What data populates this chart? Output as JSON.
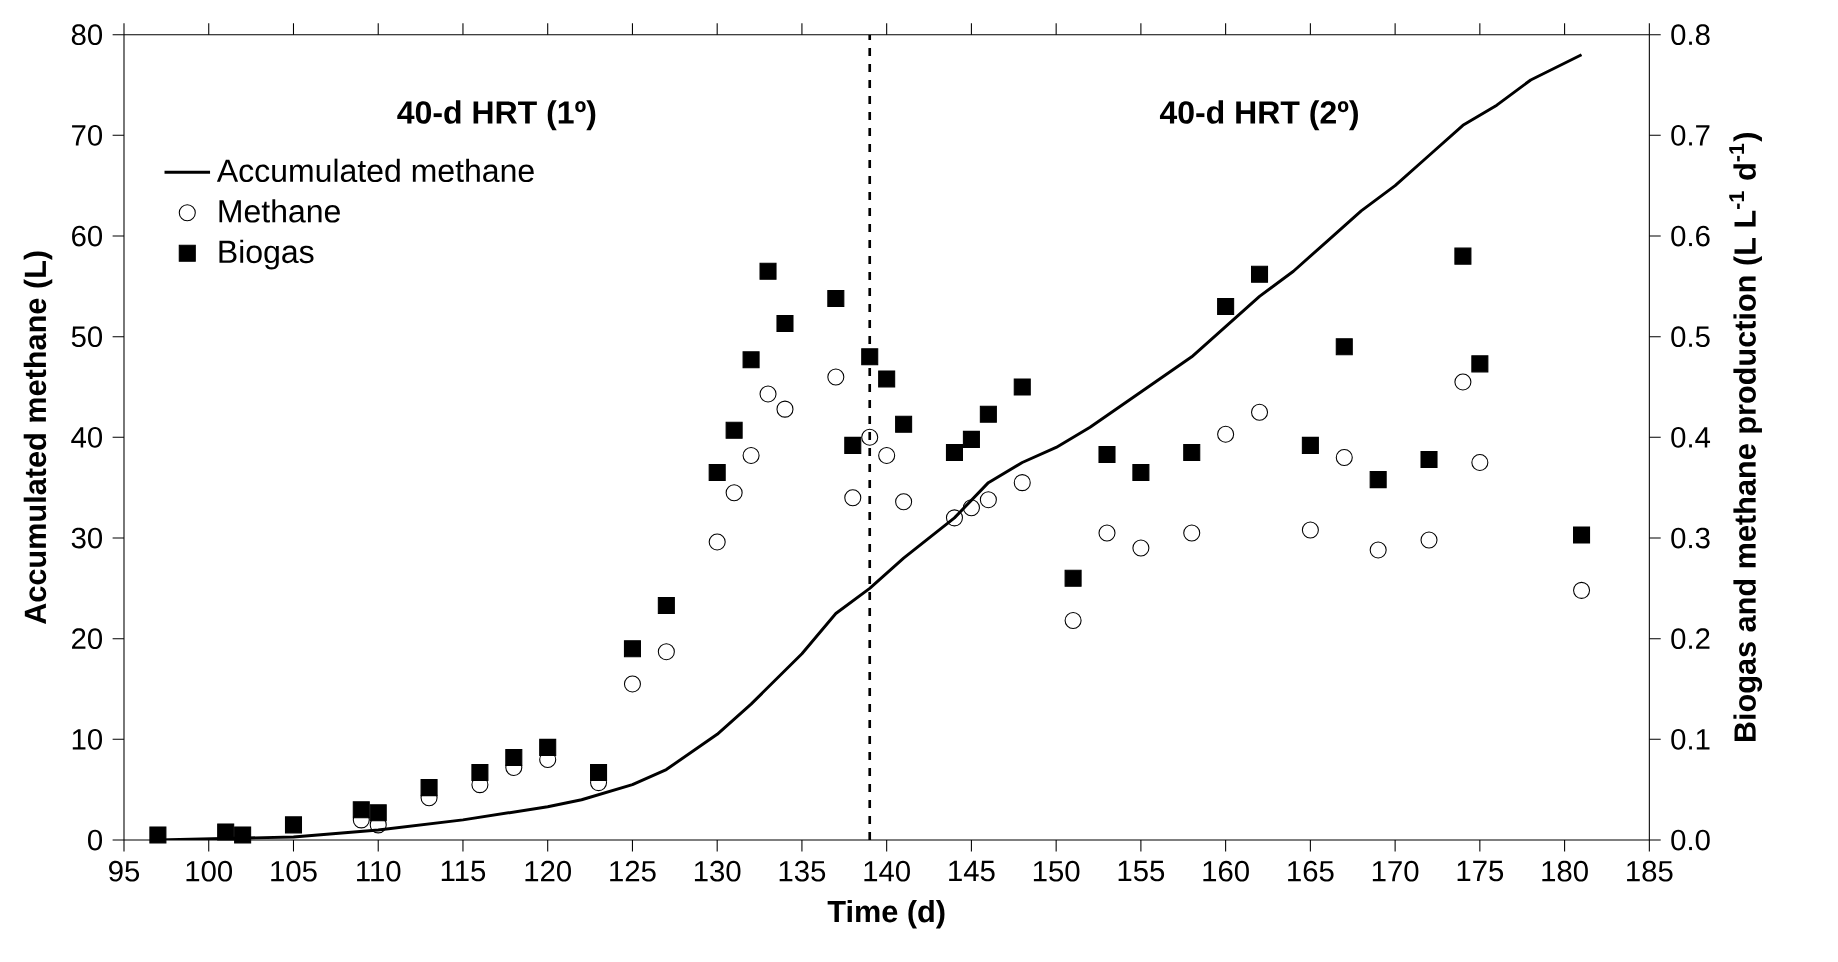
{
  "chart_data": {
    "type": "scatter",
    "xlabel": "Time (d)",
    "ylabel": "Accumulated methane (L)",
    "y2label": "Biogas and methane production (L L$^{-1}$ d$^{-1}$)",
    "xlim": [
      95,
      185
    ],
    "xticks": [
      95,
      100,
      105,
      110,
      115,
      120,
      125,
      130,
      135,
      140,
      145,
      150,
      155,
      160,
      165,
      170,
      175,
      180,
      185
    ],
    "ylim": [
      0,
      80
    ],
    "yticks": [
      0,
      10,
      20,
      30,
      40,
      50,
      60,
      70,
      80
    ],
    "y2lim": [
      0,
      0.8
    ],
    "y2ticks": [
      {
        "value": 0,
        "label": "0.0"
      },
      {
        "value": 0.1,
        "label": "0.1"
      },
      {
        "value": 0.2,
        "label": "0.2"
      },
      {
        "value": 0.3,
        "label": "0.3"
      },
      {
        "value": 0.4,
        "label": "0.4"
      },
      {
        "value": 0.5,
        "label": "0.5"
      },
      {
        "value": 0.6,
        "label": "0.6"
      },
      {
        "value": 0.7,
        "label": "0.7"
      },
      {
        "value": 0.8,
        "label": "0.8"
      }
    ],
    "legend": "top left",
    "grid": false,
    "ref_lines": [
      {
        "axis": "x",
        "value": 139,
        "line_style": "dashed",
        "color": "#000000"
      }
    ],
    "annotations": [
      "40-d HRT (1º)",
      "40-d HRT (2º)"
    ],
    "series": [
      {
        "name": "Accumulated methane",
        "type": "line",
        "color": "#000000",
        "line_style": "solid",
        "marker": "none",
        "x": [
          97,
          105,
          110,
          115,
          120,
          122,
          125,
          127,
          130,
          132,
          135,
          137,
          139,
          141,
          144,
          146,
          148,
          150,
          152,
          155,
          158,
          160,
          162,
          164,
          166,
          168,
          170,
          172,
          174,
          176,
          178,
          181
        ],
        "values": [
          0,
          0.3,
          1,
          2,
          3.3,
          4,
          5.5,
          7,
          10.5,
          13.5,
          18.5,
          22.5,
          25,
          28,
          32,
          35.5,
          37.5,
          39,
          41,
          44.5,
          48,
          51,
          54,
          56.5,
          59.5,
          62.5,
          65,
          68,
          71,
          73,
          75.5,
          78
        ]
      },
      {
        "name": "Methane",
        "axis": "y2",
        "color": "#000000",
        "marker": "circle",
        "x": [
          109,
          110,
          113,
          116,
          118,
          120,
          123,
          125,
          127,
          130,
          131,
          132,
          133,
          134,
          137,
          138,
          139,
          140,
          141,
          144,
          145,
          146,
          148,
          151,
          153,
          155,
          158,
          160,
          162,
          165,
          167,
          169,
          172,
          174,
          175,
          181
        ],
        "values": [
          0.02,
          0.015,
          0.042,
          0.055,
          0.072,
          0.08,
          0.057,
          0.155,
          0.187,
          0.296,
          0.345,
          0.382,
          0.443,
          0.428,
          0.46,
          0.34,
          0.4,
          0.382,
          0.336,
          0.32,
          0.33,
          0.338,
          0.355,
          0.218,
          0.305,
          0.29,
          0.305,
          0.403,
          0.425,
          0.308,
          0.38,
          0.288,
          0.298,
          0.455,
          0.375,
          0.248
        ]
      },
      {
        "name": "Biogas",
        "axis": "y2",
        "color": "#000000",
        "marker": "square",
        "x": [
          97,
          101,
          102,
          105,
          109,
          110,
          113,
          116,
          118,
          120,
          123,
          125,
          127,
          130,
          131,
          132,
          133,
          134,
          137,
          138,
          139,
          140,
          141,
          144,
          145,
          146,
          148,
          151,
          153,
          155,
          158,
          160,
          162,
          165,
          167,
          169,
          172,
          174,
          175,
          181
        ],
        "values": [
          0.005,
          0.008,
          0.005,
          0.015,
          0.03,
          0.027,
          0.052,
          0.067,
          0.082,
          0.092,
          0.067,
          0.19,
          0.233,
          0.365,
          0.407,
          0.477,
          0.565,
          0.513,
          0.538,
          0.392,
          0.48,
          0.458,
          0.413,
          0.385,
          0.398,
          0.423,
          0.45,
          0.26,
          0.383,
          0.365,
          0.385,
          0.53,
          0.562,
          0.392,
          0.49,
          0.358,
          0.378,
          0.58,
          0.473,
          0.303
        ]
      }
    ]
  }
}
